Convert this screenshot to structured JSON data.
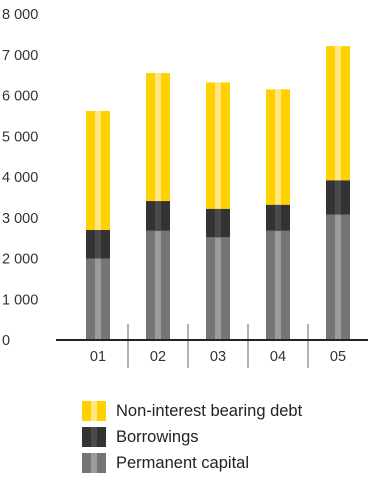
{
  "chart_data": {
    "type": "bar",
    "stacked": true,
    "categories": [
      "01",
      "02",
      "03",
      "04",
      "05"
    ],
    "series": [
      {
        "name": "Permanent capital",
        "values": [
          2000,
          2680,
          2520,
          2680,
          3080
        ],
        "color": "#757575",
        "stripe": "#9b9b9b"
      },
      {
        "name": "Borrowings",
        "values": [
          700,
          730,
          700,
          640,
          840
        ],
        "color": "#333333",
        "stripe": "#4a4a4a"
      },
      {
        "name": "Non-interest bearing debt",
        "values": [
          2920,
          3140,
          3100,
          2830,
          3290
        ],
        "color": "#ffd100",
        "stripe": "#ffe680"
      }
    ],
    "yticks": [
      0,
      1000,
      2000,
      3000,
      4000,
      5000,
      6000,
      7000,
      8000
    ],
    "ytick_labels": [
      "0",
      "1 000",
      "2 000",
      "3 000",
      "4 000",
      "5 000",
      "6 000",
      "7 000",
      "8 000"
    ],
    "ylim": [
      0,
      8000
    ],
    "grid": false,
    "legend_position": "bottom-left",
    "title": "",
    "xlabel": "",
    "ylabel": ""
  },
  "legend": [
    {
      "label": "Non-interest bearing debt",
      "color": "#ffd100",
      "stripe": "#ffe680"
    },
    {
      "label": "Borrowings",
      "color": "#333333",
      "stripe": "#4a4a4a"
    },
    {
      "label": "Permanent capital",
      "color": "#757575",
      "stripe": "#9b9b9b"
    }
  ]
}
